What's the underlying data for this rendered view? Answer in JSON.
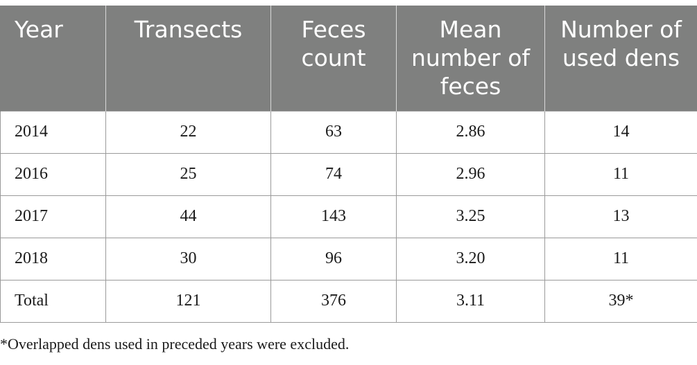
{
  "table": {
    "headers": [
      "Year",
      "Transects",
      "Feces count",
      "Mean number of feces",
      "Number of used dens"
    ],
    "rows": [
      [
        "2014",
        "22",
        "63",
        "2.86",
        "14"
      ],
      [
        "2016",
        "25",
        "74",
        "2.96",
        "11"
      ],
      [
        "2017",
        "44",
        "143",
        "3.25",
        "13"
      ],
      [
        "2018",
        "30",
        "96",
        "3.20",
        "11"
      ],
      [
        "Total",
        "121",
        "376",
        "3.11",
        "39*"
      ]
    ]
  },
  "footnote": "*Overlapped dens used in preceded years were excluded.",
  "colors": {
    "header_bg": "#7f807f",
    "header_text": "#ffffff",
    "grid": "#9a9a9a"
  }
}
